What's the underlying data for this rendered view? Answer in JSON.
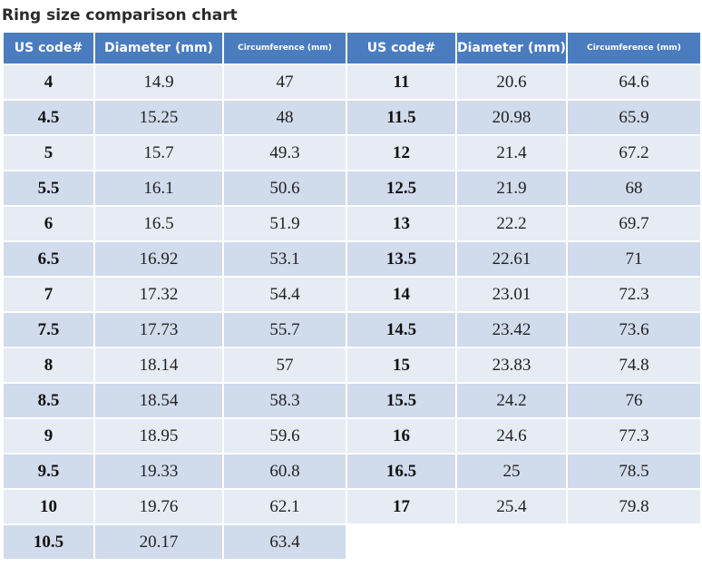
{
  "title": "Ring size comparison chart",
  "headers": [
    "US code#",
    "Diameter (mm)",
    "Circumference (mm)",
    "US code#",
    "Diameter (mm)",
    "Circumference (mm)"
  ],
  "rows": [
    [
      "4",
      "14.9",
      "47",
      "11",
      "20.6",
      "64.6"
    ],
    [
      "4.5",
      "15.25",
      "48",
      "11.5",
      "20.98",
      "65.9"
    ],
    [
      "5",
      "15.7",
      "49.3",
      "12",
      "21.4",
      "67.2"
    ],
    [
      "5.5",
      "16.1",
      "50.6",
      "12.5",
      "21.9",
      "68"
    ],
    [
      "6",
      "16.5",
      "51.9",
      "13",
      "22.2",
      "69.7"
    ],
    [
      "6.5",
      "16.92",
      "53.1",
      "13.5",
      "22.61",
      "71"
    ],
    [
      "7",
      "17.32",
      "54.4",
      "14",
      "23.01",
      "72.3"
    ],
    [
      "7.5",
      "17.73",
      "55.7",
      "14.5",
      "23.42",
      "73.6"
    ],
    [
      "8",
      "18.14",
      "57",
      "15",
      "23.83",
      "74.8"
    ],
    [
      "8.5",
      "18.54",
      "58.3",
      "15.5",
      "24.2",
      "76"
    ],
    [
      "9",
      "18.95",
      "59.6",
      "16",
      "24.6",
      "77.3"
    ],
    [
      "9.5",
      "19.33",
      "60.8",
      "16.5",
      "25",
      "78.5"
    ],
    [
      "10",
      "19.76",
      "62.1",
      "17",
      "25.4",
      "79.8"
    ],
    [
      "10.5",
      "20.17",
      "63.4",
      "",
      "",
      ""
    ]
  ]
}
